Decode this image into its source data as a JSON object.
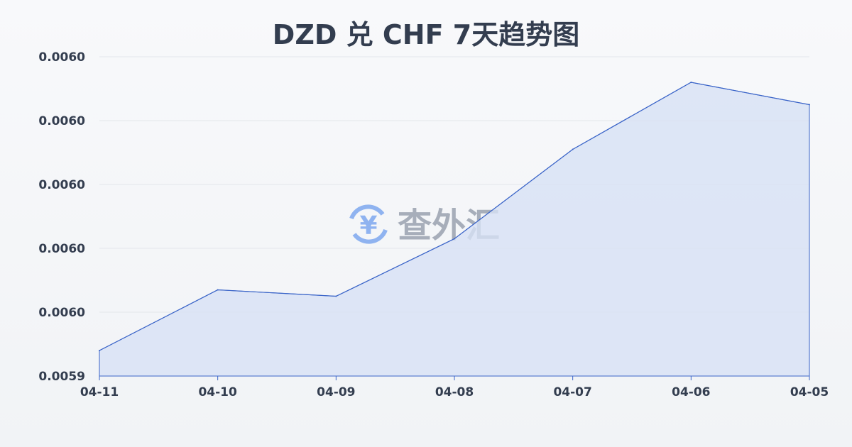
{
  "chart_data": {
    "type": "area",
    "title": "DZD 兑 CHF 7天趋势图",
    "xlabel": "",
    "ylabel": "",
    "categories": [
      "04-11",
      "04-10",
      "04-09",
      "04-08",
      "04-07",
      "04-06",
      "04-05"
    ],
    "series": [
      {
        "values": [
          0.005948,
          0.005967,
          0.005965,
          0.005983,
          0.006011,
          0.006032,
          0.006025
        ]
      }
    ],
    "ylim": [
      0.00594,
      0.00604
    ],
    "yticks": [
      0.00594,
      0.00596,
      0.00598,
      0.006,
      0.00602,
      0.00604
    ],
    "ytick_labels": [
      "0.0059",
      "0.0060",
      "0.0060",
      "0.0060",
      "0.0060",
      "0.0060"
    ],
    "grid": true,
    "line_color": "#3a64c8",
    "fill_color": "#d7e1f5"
  },
  "watermark": {
    "text": "查外汇",
    "icon": "yen-exchange-icon",
    "icon_color": "#8fb3f0"
  }
}
